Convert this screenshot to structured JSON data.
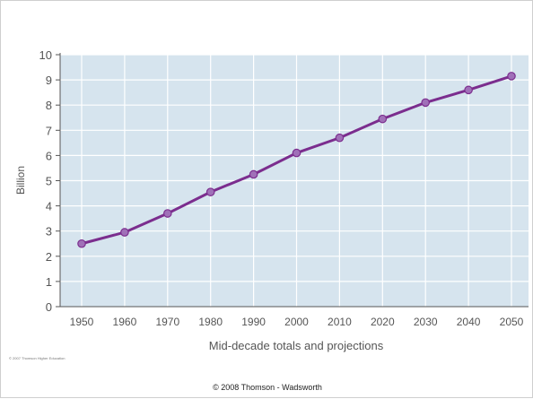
{
  "chart_data": {
    "type": "line",
    "x": [
      1950,
      1960,
      1970,
      1980,
      1990,
      2000,
      2010,
      2020,
      2030,
      2040,
      2050
    ],
    "series": [
      {
        "values": [
          2.5,
          2.95,
          3.7,
          4.55,
          5.25,
          6.1,
          6.7,
          7.45,
          8.1,
          8.6,
          9.15
        ]
      }
    ],
    "xlabel": "Mid-decade totals and projections",
    "ylabel": "Billion",
    "ylim": [
      0,
      10
    ],
    "yticks": [
      0,
      1,
      2,
      3,
      4,
      5,
      6,
      7,
      8,
      9,
      10
    ],
    "xticks": [
      "1950",
      "1960",
      "1970",
      "1980",
      "1990",
      "2000",
      "2010",
      "2020",
      "2030",
      "2040",
      "2050"
    ],
    "grid": true,
    "colors": {
      "line": "#7b2d8e",
      "marker": "#a070b8",
      "plot_bg": "#d6e4ee",
      "grid": "#ffffff"
    }
  },
  "footer": {
    "credit": "© 2008 Thomson - Wadsworth",
    "small_credit": "© 2007 Thomson Higher Education"
  }
}
